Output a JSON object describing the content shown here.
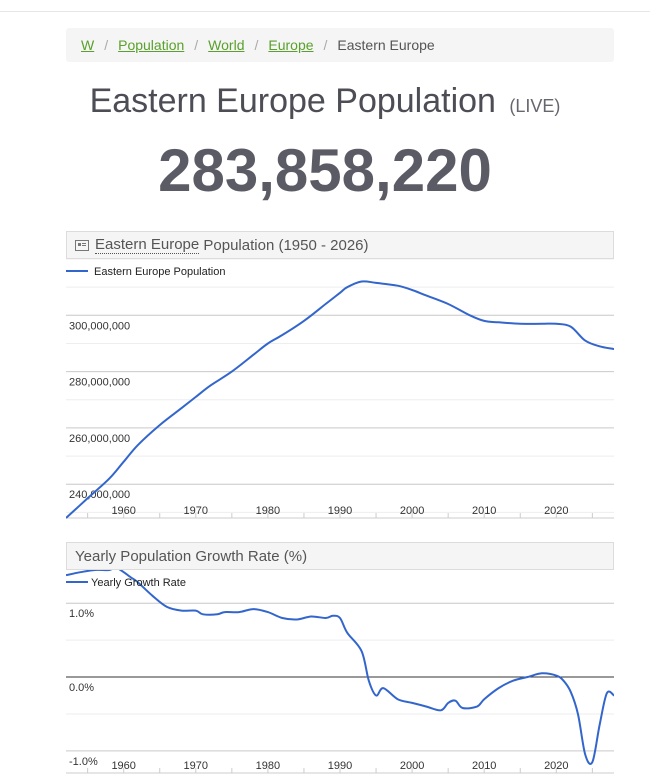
{
  "breadcrumb": {
    "items": [
      "W",
      "Population",
      "World",
      "Europe"
    ],
    "current": "Eastern Europe"
  },
  "header": {
    "title": "Eastern Europe Population",
    "live": "(LIVE)",
    "counter": "283,858,220"
  },
  "colors": {
    "line": "#3366cc",
    "link": "#5aa02c"
  },
  "chart_data": [
    {
      "type": "line",
      "title_link": "Eastern Europe",
      "title_rest": " Population (1950 - 2026)",
      "legend": "Eastern Europe Population",
      "xlim": [
        1952,
        2028
      ],
      "ylim": [
        228000000,
        320000000
      ],
      "x_ticks": [
        1960,
        1970,
        1980,
        1990,
        2000,
        2010,
        2020
      ],
      "y_ticks": [
        240000000,
        260000000,
        280000000,
        300000000
      ],
      "y_tick_labels": [
        "240,000,000",
        "260,000,000",
        "280,000,000",
        "300,000,000"
      ],
      "series": [
        {
          "x": [
            1952,
            1955,
            1958,
            1960,
            1962,
            1965,
            1968,
            1970,
            1972,
            1975,
            1978,
            1980,
            1982,
            1985,
            1988,
            1990,
            1991,
            1993,
            1995,
            1998,
            2000,
            2002,
            2005,
            2008,
            2010,
            2012,
            2015,
            2018,
            2020,
            2022,
            2024,
            2026,
            2028
          ],
          "y": [
            228000000,
            235000000,
            242000000,
            248000000,
            254000000,
            261000000,
            267000000,
            271000000,
            275000000,
            280000000,
            286000000,
            290000000,
            293000000,
            298000000,
            304000000,
            308000000,
            310000000,
            312000000,
            311500000,
            310500000,
            309000000,
            307000000,
            304000000,
            300000000,
            298000000,
            297500000,
            297000000,
            297000000,
            297000000,
            296000000,
            291000000,
            289000000,
            288000000
          ]
        }
      ]
    },
    {
      "type": "line",
      "title": "Yearly Population Growth Rate (%)",
      "legend": "Yearly Growth Rate",
      "xlim": [
        1952,
        2028
      ],
      "ylim": [
        -1.3,
        1.45
      ],
      "x_ticks": [
        1960,
        1970,
        1980,
        1990,
        2000,
        2010,
        2020
      ],
      "y_ticks": [
        -1.0,
        0.0,
        1.0
      ],
      "y_tick_labels": [
        "-1.0%",
        "0.0%",
        "1.0%"
      ],
      "series": [
        {
          "x": [
            1952,
            1954,
            1956,
            1958,
            1959,
            1961,
            1962,
            1964,
            1966,
            1968,
            1970,
            1971,
            1973,
            1974,
            1976,
            1978,
            1980,
            1982,
            1984,
            1986,
            1988,
            1989,
            1990,
            1991,
            1993,
            1994,
            1995,
            1996,
            1998,
            2000,
            2002,
            2004,
            2005,
            2006,
            2007,
            2009,
            2010,
            2012,
            2014,
            2016,
            2018,
            2020,
            2021,
            2022,
            2023,
            2024,
            2025,
            2026,
            2027,
            2028
          ],
          "y": [
            1.38,
            1.42,
            1.45,
            1.45,
            1.48,
            1.35,
            1.28,
            1.1,
            0.95,
            0.9,
            0.9,
            0.85,
            0.85,
            0.88,
            0.88,
            0.92,
            0.88,
            0.8,
            0.78,
            0.82,
            0.8,
            0.83,
            0.8,
            0.6,
            0.35,
            -0.05,
            -0.25,
            -0.15,
            -0.3,
            -0.35,
            -0.4,
            -0.45,
            -0.35,
            -0.32,
            -0.42,
            -0.4,
            -0.3,
            -0.15,
            -0.05,
            0.0,
            0.05,
            0.02,
            -0.05,
            -0.2,
            -0.5,
            -1.05,
            -1.15,
            -0.65,
            -0.22,
            -0.25
          ]
        }
      ]
    }
  ]
}
